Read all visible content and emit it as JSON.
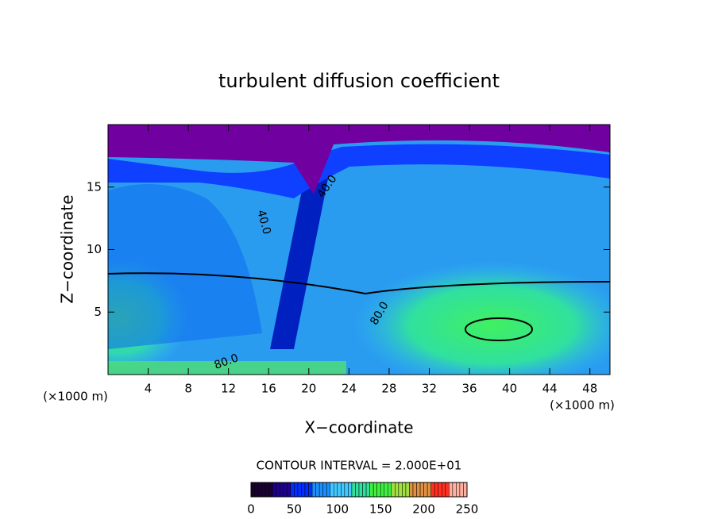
{
  "chart_data": {
    "type": "contour",
    "title": "turbulent diffusion coefficient",
    "xlabel": "X−coordinate",
    "ylabel": "Z−coordinate",
    "x_units": "(×1000 m)",
    "y_units": "(×1000 m)",
    "xlim": [
      0,
      50
    ],
    "ylim": [
      0,
      20
    ],
    "xticks": [
      4,
      8,
      12,
      16,
      20,
      24,
      28,
      32,
      36,
      40,
      44,
      48
    ],
    "yticks": [
      5,
      10,
      15
    ],
    "contour_interval_label": "CONTOUR INTERVAL = 2.000E+01",
    "contour_labels": [
      "40.0",
      "40.0",
      "80.0",
      "80.0"
    ],
    "colorbar": {
      "lim": [
        0,
        250
      ],
      "ticks": [
        0,
        50,
        100,
        150,
        200,
        250
      ],
      "colormap": [
        "#1a0030",
        "#20008a",
        "#0030ff",
        "#1a90ff",
        "#40c8ff",
        "#30e0a0",
        "#40f040",
        "#a0e040",
        "#e09040",
        "#ff3020",
        "#ffb0a0"
      ]
    }
  }
}
